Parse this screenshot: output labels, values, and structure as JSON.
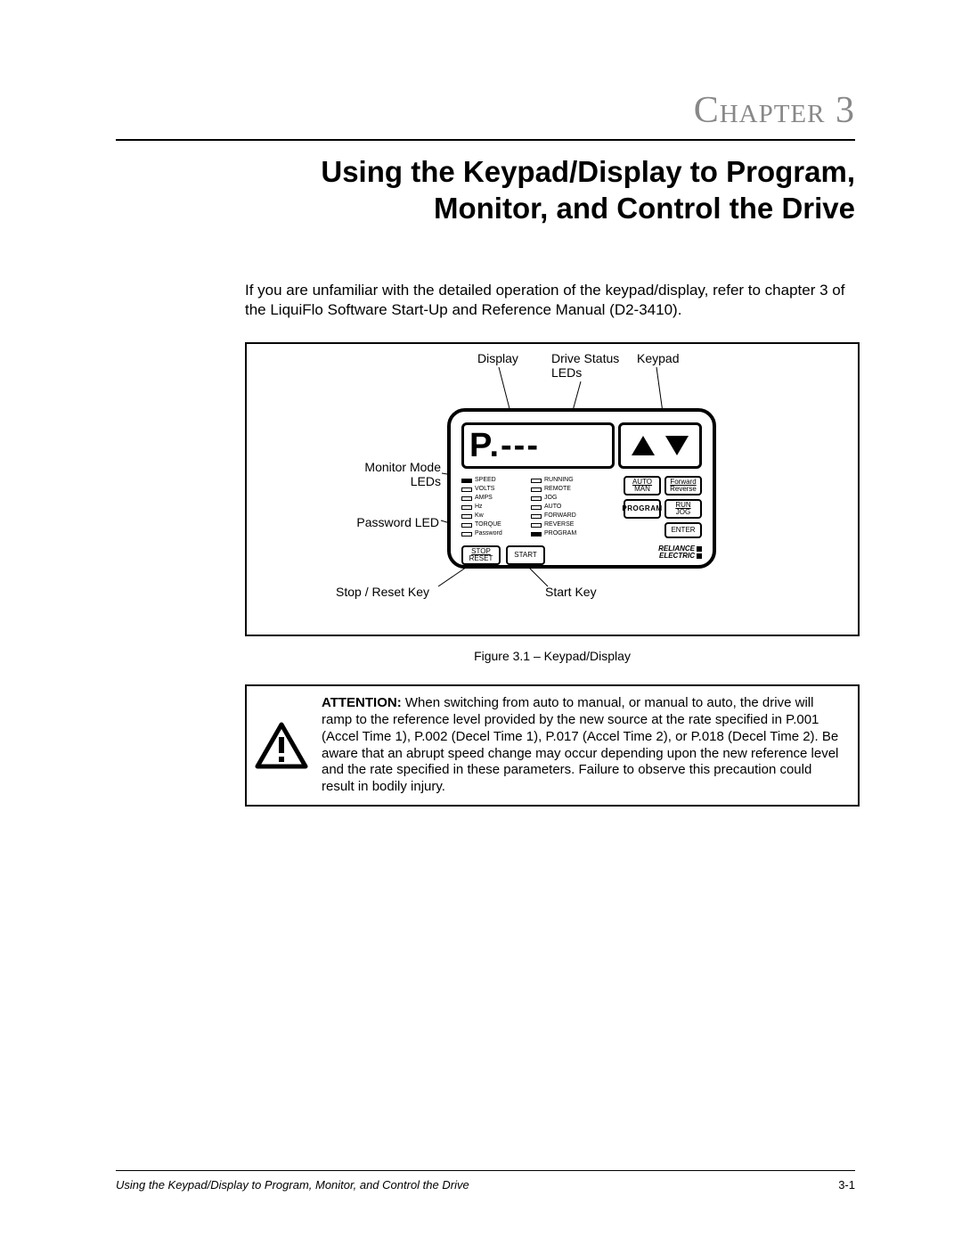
{
  "chapter_label": "Chapter 3",
  "title_line1": "Using the Keypad/Display to Program,",
  "title_line2": "Monitor, and Control the Drive",
  "intro": "If you are unfamiliar with the detailed operation of the keypad/display, refer to chapter 3 of the LiquiFlo Software Start-Up and Reference Manual (D2-3410).",
  "callouts": {
    "display": "Display",
    "drive_status_leds1": "Drive Status",
    "drive_status_leds2": "LEDs",
    "keypad": "Keypad",
    "monitor_mode1": "Monitor Mode",
    "monitor_mode2": "LEDs",
    "password_led": "Password LED",
    "stop_reset_key": "Stop / Reset Key",
    "start_key": "Start Key"
  },
  "device": {
    "screen_text": "P.---",
    "monitor_leds": [
      {
        "label": "SPEED",
        "filled": true
      },
      {
        "label": "VOLTS",
        "filled": false
      },
      {
        "label": "AMPS",
        "filled": false
      },
      {
        "label": "Hz",
        "filled": false
      },
      {
        "label": "Kw",
        "filled": false
      },
      {
        "label": "TORQUE",
        "filled": false
      },
      {
        "label": "Password",
        "filled": false
      }
    ],
    "status_leds": [
      {
        "label": "RUNNING",
        "filled": false
      },
      {
        "label": "REMOTE",
        "filled": false
      },
      {
        "label": "JOG",
        "filled": false
      },
      {
        "label": "AUTO",
        "filled": false
      },
      {
        "label": "FORWARD",
        "filled": false
      },
      {
        "label": "REVERSE",
        "filled": false
      },
      {
        "label": "PROGRAM",
        "filled": true
      }
    ],
    "buttons": {
      "auto_top": "AUTO",
      "auto_bot": "MAN",
      "fwd_top": "Forward",
      "fwd_bot": "Reverse",
      "program": "PROGRAM",
      "run_top": "RUN",
      "run_bot": "JOG",
      "enter": "ENTER",
      "stop_top": "STOP",
      "stop_bot": "RESET",
      "start": "START"
    },
    "brand1": "RELIANCE",
    "brand2": "ELECTRIC"
  },
  "figure_caption": "Figure 3.1 – Keypad/Display",
  "attention_label": "ATTENTION:",
  "attention_text": " When switching from auto to manual, or manual to auto, the drive will ramp to the reference level provided by the new source at the rate specified in P.001 (Accel Time 1), P.002 (Decel Time 1), P.017 (Accel Time 2), or P.018 (Decel Time 2). Be aware that an abrupt speed change may occur depending upon the new reference level and the rate specified in these parameters. Failure to observe this precaution could result in bodily injury.",
  "footer_title": "Using the Keypad/Display to Program, Monitor, and Control the Drive",
  "footer_page": "3-1",
  "colors": {
    "text": "#000000",
    "chapter": "#888888",
    "bg": "#ffffff"
  }
}
